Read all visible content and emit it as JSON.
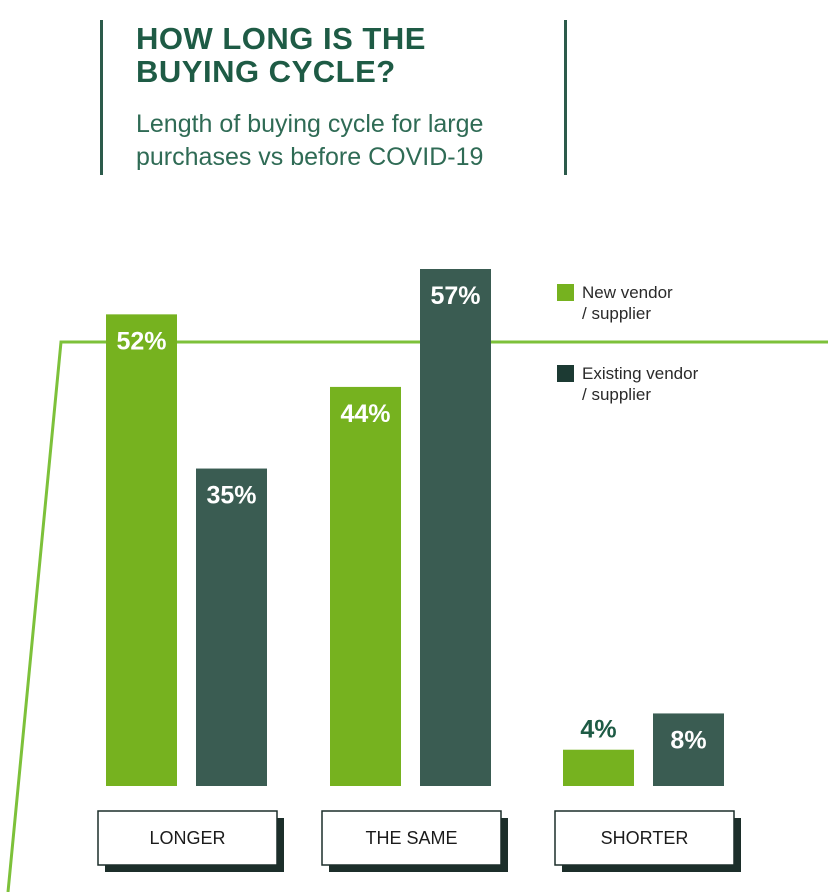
{
  "chart_data": {
    "type": "bar",
    "title": "HOW LONG IS THE\nBUYING CYCLE?",
    "subtitle": "Length of buying cycle for large\npurchases vs before COVID-19",
    "categories": [
      "LONGER",
      "THE SAME",
      "SHORTER"
    ],
    "series": [
      {
        "name": "New vendor / supplier",
        "legend_lines": [
          "New vendor",
          "/ supplier"
        ],
        "color": "#76b21f",
        "values": [
          52,
          44,
          4
        ],
        "labels": [
          "52%",
          "44%",
          "4%"
        ]
      },
      {
        "name": "Existing vendor / supplier",
        "legend_lines": [
          "Existing vendor",
          "/ supplier"
        ],
        "color": "#3a5c52",
        "values": [
          35,
          57,
          8
        ],
        "labels": [
          "35%",
          "57%",
          "8%"
        ]
      }
    ],
    "ylim": [
      0,
      57
    ],
    "y_unit": "%",
    "legend_position": "top-right",
    "grid": false,
    "colors": {
      "title": "#1e5b45",
      "accent_line": "#7dc13a",
      "outside_label_new": "#1e5b45",
      "label_on_bar": "#ffffff",
      "label_existing_small": "#ffffff"
    }
  }
}
